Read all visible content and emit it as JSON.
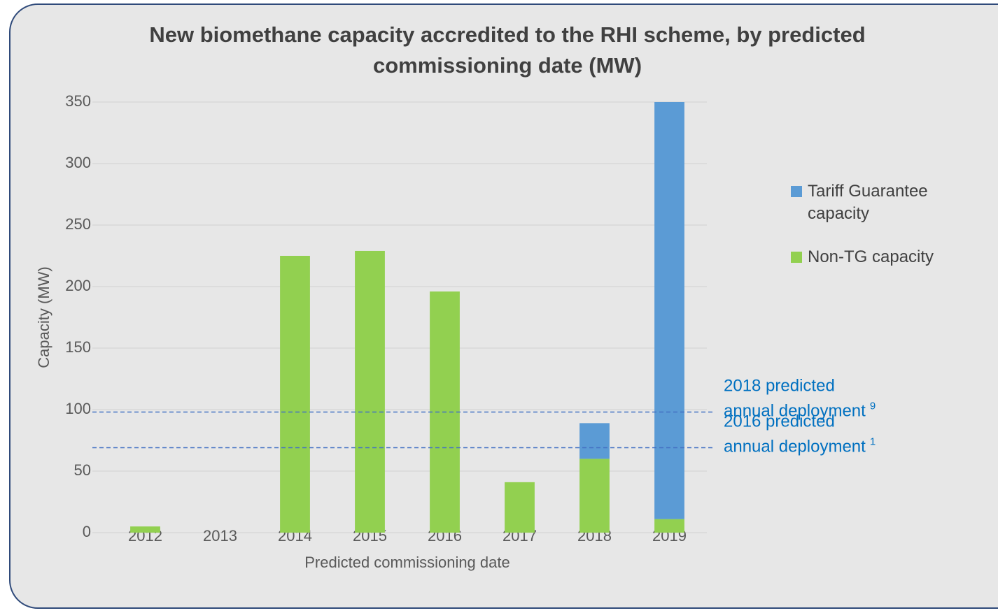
{
  "chart_data": {
    "type": "stacked_bar",
    "title": "New biomethane capacity accredited to the RHI scheme, by predicted commissioning date (MW)",
    "x_label": "Predicted commissioning date",
    "y_label": "Capacity (MW)",
    "categories": [
      "2012",
      "2013",
      "2014",
      "2015",
      "2016",
      "2017",
      "2018",
      "2019"
    ],
    "series": [
      {
        "name": "Non-TG capacity",
        "color": "#92d050",
        "values": [
          5,
          0,
          225,
          229,
          196,
          41,
          60,
          11
        ]
      },
      {
        "name": "Tariff Guarantee capacity",
        "color": "#5b9bd5",
        "values": [
          0,
          0,
          0,
          0,
          0,
          0,
          29,
          339
        ]
      }
    ],
    "ylim": [
      0,
      350
    ],
    "yticks": [
      0,
      50,
      100,
      150,
      200,
      250,
      300,
      350
    ],
    "grid": true,
    "legend": "right",
    "reference_lines": [
      {
        "value": 98,
        "color": "#4472c4",
        "lines": [
          "2018 predicted",
          "annual deployment"
        ],
        "note": "9"
      },
      {
        "value": 69,
        "color": "#4472c4",
        "lines": [
          "2016 predicted",
          "annual deployment"
        ],
        "note": "1"
      }
    ]
  }
}
